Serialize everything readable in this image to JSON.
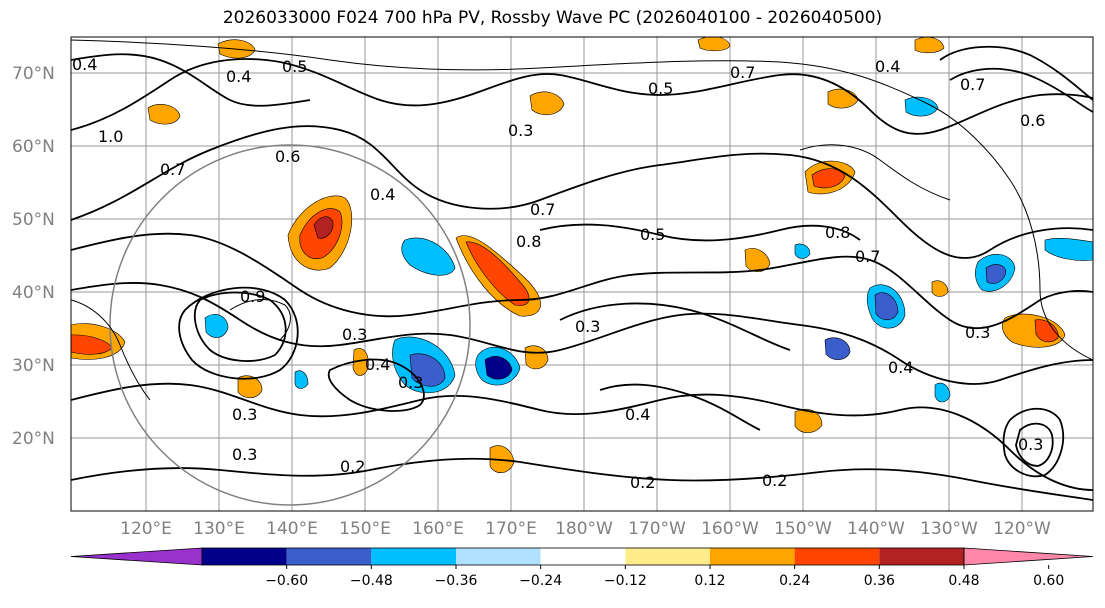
{
  "title": "2026033000 F024 700 hPa PV, Rossby Wave PC (2026040100 - 2026040500)",
  "latitudes": [
    "70°N",
    "60°N",
    "50°N",
    "40°N",
    "30°N",
    "20°N"
  ],
  "longitudes": [
    "120°E",
    "130°E",
    "140°E",
    "150°E",
    "160°E",
    "170°E",
    "180°W",
    "170°W",
    "160°W",
    "150°W",
    "140°W",
    "130°W",
    "120°W"
  ],
  "contour_labels": [
    "0.4",
    "0.5",
    "0.6",
    "0.7",
    "0.8",
    "0.3",
    "0.2",
    "0.9",
    "1.0"
  ],
  "colorbar": {
    "ticks": [
      "−0.60",
      "−0.48",
      "−0.36",
      "−0.24",
      "−0.12",
      "0.12",
      "0.24",
      "0.36",
      "0.48",
      "0.60"
    ],
    "colors": [
      "#9932cc",
      "#00008b",
      "#3a5fcd",
      "#00bfff",
      "#b0e2ff",
      "#ffffff",
      "#ffec8b",
      "#ffa500",
      "#ff4500",
      "#b22222",
      "#ff88aa"
    ]
  }
}
